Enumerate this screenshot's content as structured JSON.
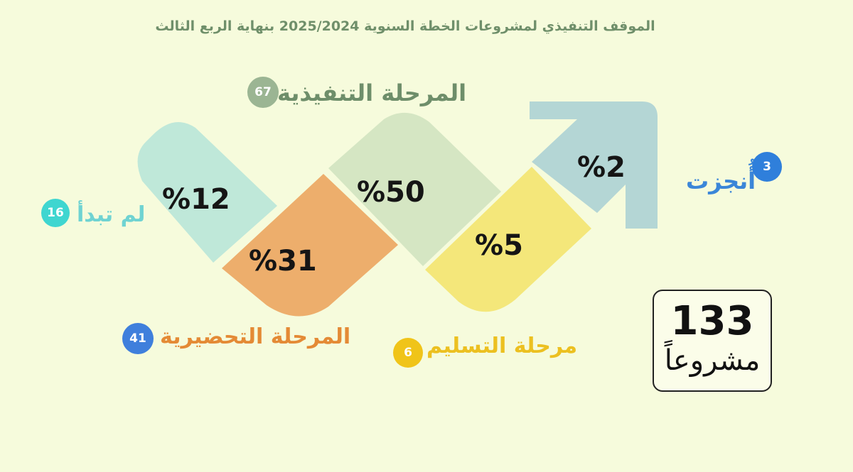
{
  "title": "الموقف التنفيذي لمشروعات الخطة السنوية 2025/2024 بنهاية الربع الثالث",
  "stages": {
    "not_started": {
      "label": "لم تبدأ",
      "count": "16",
      "percent": "%12",
      "color": "#bfe8d9",
      "badge_color": "#3fd6d0"
    },
    "preparatory": {
      "label": "المرحلة التحضيرية",
      "count": "41",
      "percent": "%31",
      "color": "#edae6c",
      "badge_color": "#3f7fdc",
      "label_color": "#e48a35"
    },
    "executive": {
      "label": "المرحلة التنفيذية",
      "count": "67",
      "percent": "%50",
      "color": "#d5e6c3",
      "badge_color": "#9bb593",
      "label_color": "#6e8e6a"
    },
    "delivery": {
      "label": "مرحلة التسليم",
      "count": "6",
      "percent": "%5",
      "color": "#f4e77a",
      "badge_color": "#f0c419",
      "label_color": "#ecc020"
    },
    "completed": {
      "label": "أُنجزت",
      "count": "3",
      "percent": "%2",
      "color": "#b4d6d5",
      "badge_color": "#2f7fdb",
      "label_color": "#3b86d8"
    }
  },
  "total": {
    "number": "133",
    "word": "مشروعاً"
  }
}
